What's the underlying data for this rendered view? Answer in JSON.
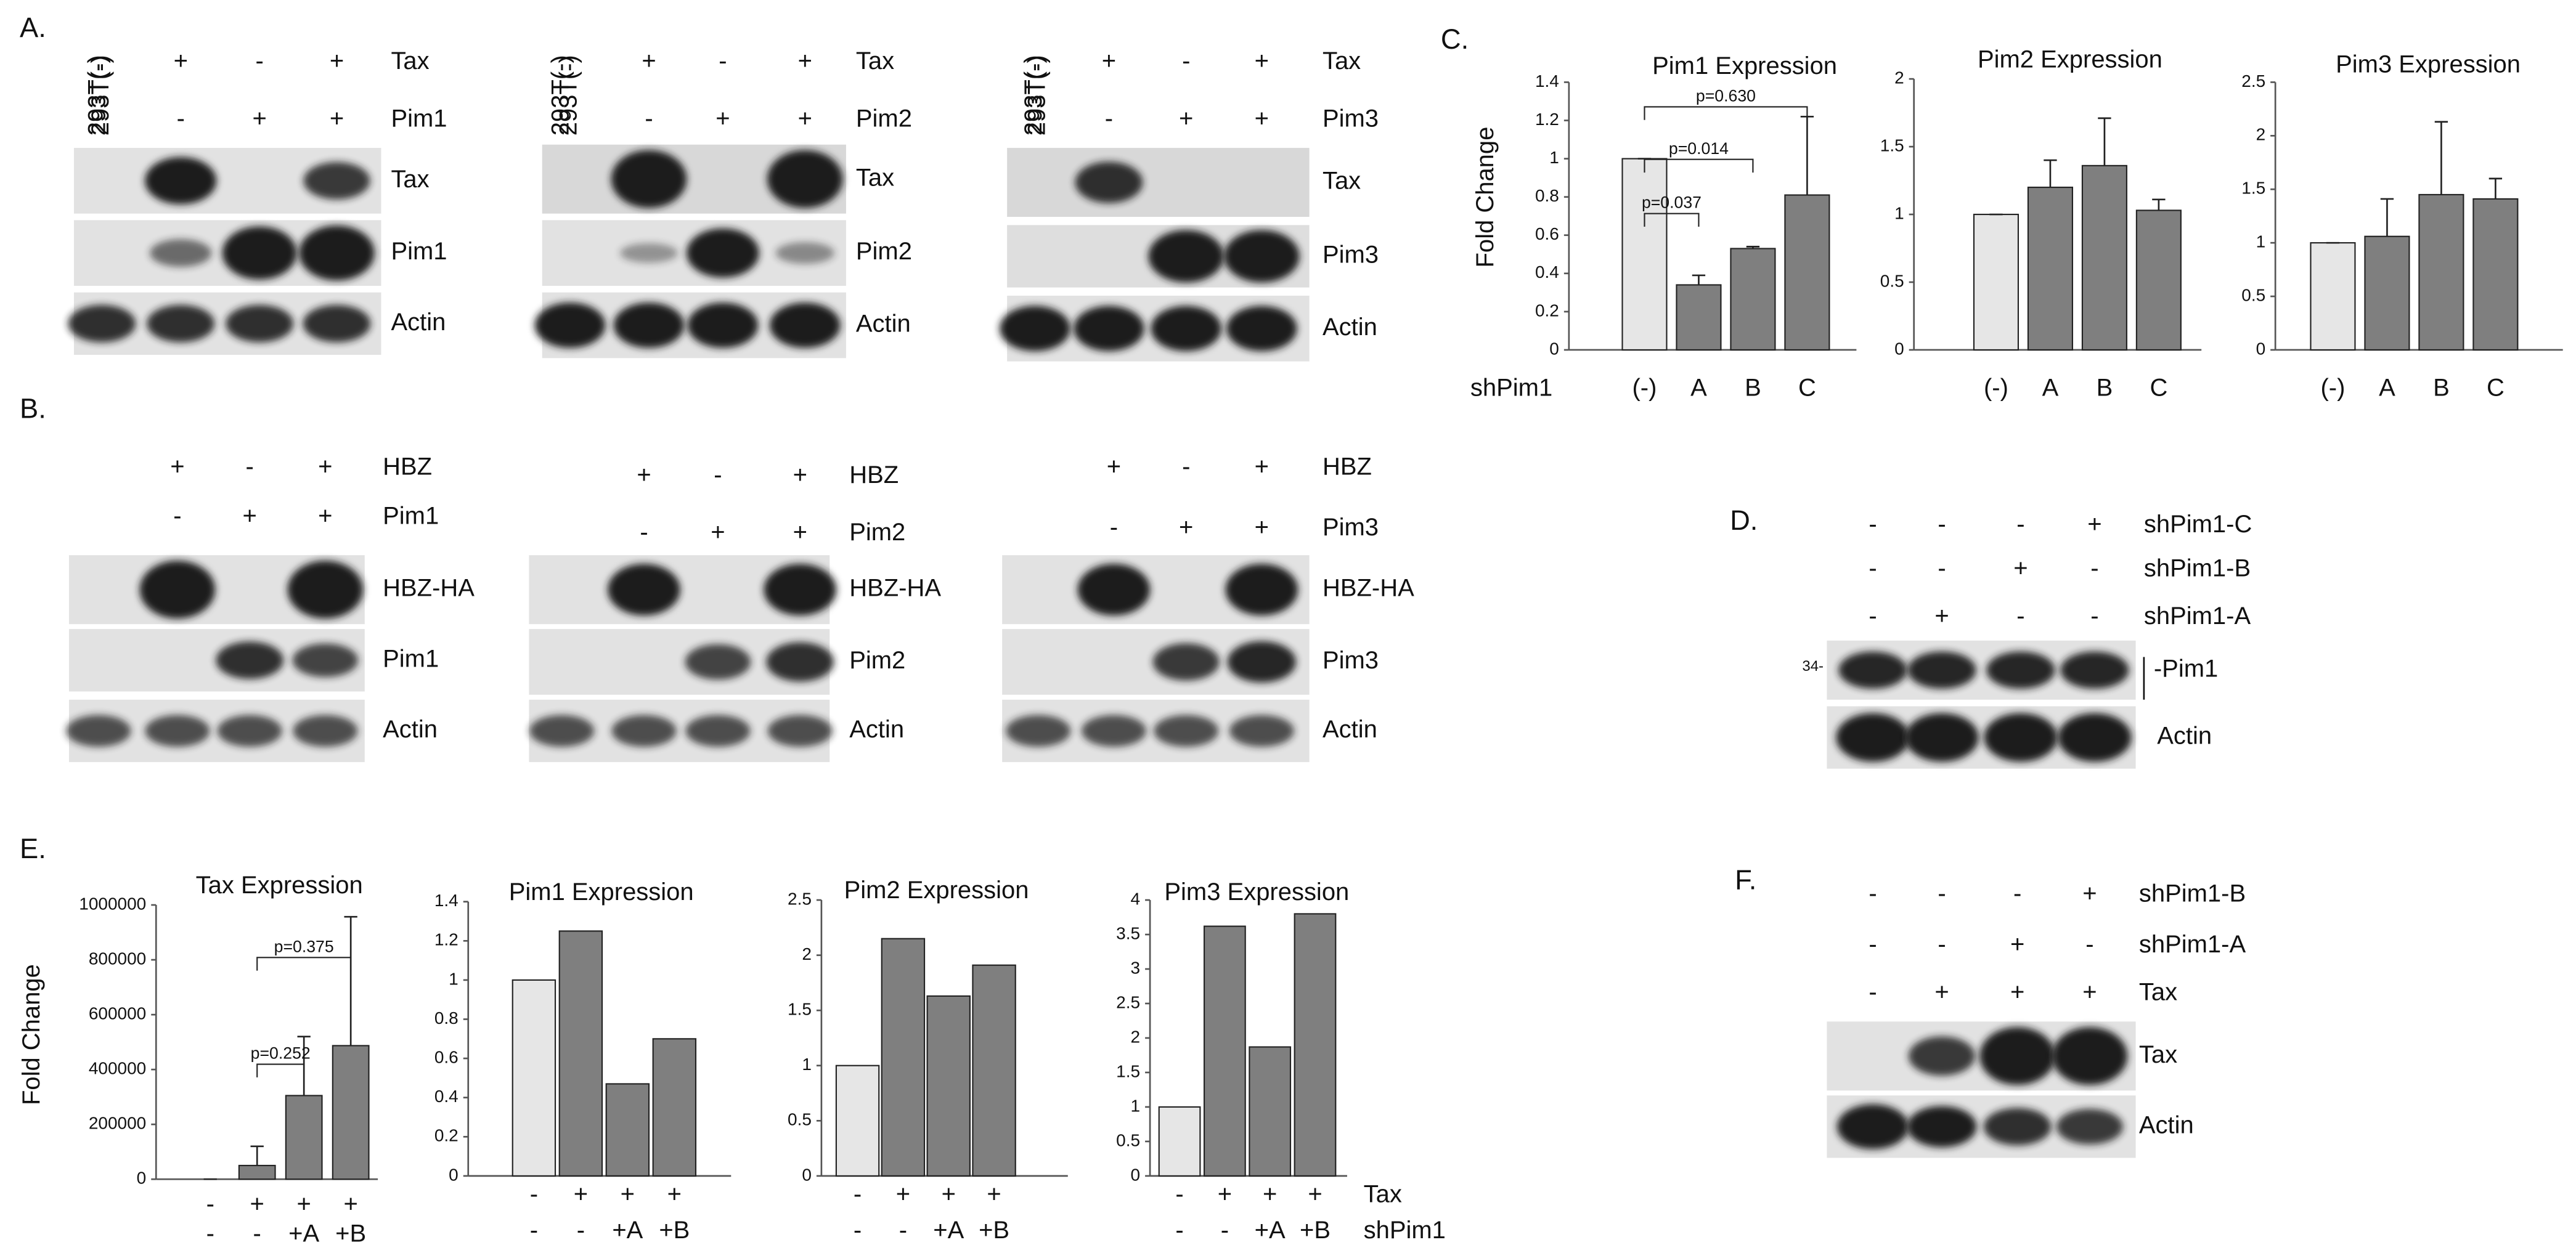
{
  "panels": {
    "A": {
      "label": "A.",
      "blots": [
        {
          "lane_header": "293T(-)",
          "rows": [
            {
              "label": "Tax",
              "signs": [
                "+",
                "-",
                "+"
              ]
            },
            {
              "label": "Pim1",
              "signs": [
                "-",
                "+",
                "+"
              ]
            }
          ],
          "bands": [
            "Tax",
            "Pim1",
            "Actin"
          ]
        },
        {
          "lane_header": "293T(-)",
          "rows": [
            {
              "label": "Tax",
              "signs": [
                "+",
                "-",
                "+"
              ]
            },
            {
              "label": "Pim2",
              "signs": [
                "-",
                "+",
                "+"
              ]
            }
          ],
          "bands": [
            "Tax",
            "Pim2",
            "Actin"
          ]
        },
        {
          "lane_header": "293T(-)",
          "rows": [
            {
              "label": "Tax",
              "signs": [
                "+",
                "-",
                "+"
              ]
            },
            {
              "label": "Pim3",
              "signs": [
                "-",
                "+",
                "+"
              ]
            }
          ],
          "bands": [
            "Tax",
            "Pim3",
            "Actin"
          ]
        }
      ]
    },
    "B": {
      "label": "B.",
      "blots": [
        {
          "lane_header": "293T(-)",
          "rows": [
            {
              "label": "HBZ",
              "signs": [
                "+",
                "-",
                "+"
              ]
            },
            {
              "label": "Pim1",
              "signs": [
                "-",
                "+",
                "+"
              ]
            }
          ],
          "bands": [
            "HBZ-HA",
            "Pim1",
            "Actin"
          ]
        },
        {
          "lane_header": "293T(-)",
          "rows": [
            {
              "label": "HBZ",
              "signs": [
                "+",
                "-",
                "+"
              ]
            },
            {
              "label": "Pim2",
              "signs": [
                "-",
                "+",
                "+"
              ]
            }
          ],
          "bands": [
            "HBZ-HA",
            "Pim2",
            "Actin"
          ]
        },
        {
          "lane_header": "293T(-)",
          "rows": [
            {
              "label": "HBZ",
              "signs": [
                "+",
                "-",
                "+"
              ]
            },
            {
              "label": "Pim3",
              "signs": [
                "-",
                "+",
                "+"
              ]
            }
          ],
          "bands": [
            "HBZ-HA",
            "Pim3",
            "Actin"
          ]
        }
      ]
    },
    "C": {
      "label": "C."
    },
    "D": {
      "label": "D.",
      "rows": [
        {
          "label": "shPim1-C",
          "signs": [
            "-",
            "-",
            "-",
            "+"
          ]
        },
        {
          "label": "shPim1-B",
          "signs": [
            "-",
            "-",
            "+",
            "-"
          ]
        },
        {
          "label": "shPim1-A",
          "signs": [
            "-",
            "+",
            "-",
            "-"
          ]
        }
      ],
      "marker": "34-",
      "bands": [
        "-Pim1",
        "Actin"
      ]
    },
    "E": {
      "label": "E."
    },
    "F": {
      "label": "F.",
      "rows": [
        {
          "label": "shPim1-B",
          "signs": [
            "-",
            "-",
            "-",
            "+"
          ]
        },
        {
          "label": "shPim1-A",
          "signs": [
            "-",
            "-",
            "+",
            "-"
          ]
        },
        {
          "label": "Tax",
          "signs": [
            "-",
            "+",
            "+",
            "+"
          ]
        }
      ],
      "bands": [
        "Tax",
        "Actin"
      ]
    }
  },
  "chart_data": [
    {
      "type": "bar",
      "title": "Pim1 Expression",
      "ylabel": "Fold Change",
      "xlabel": "shPim1",
      "categories": [
        "(-)",
        "A",
        "B",
        "C"
      ],
      "values": [
        1,
        0.34,
        0.53,
        0.81
      ],
      "errors": [
        0,
        0.05,
        0.01,
        0.41
      ],
      "colors": [
        "#e6e6e6",
        "#7f7f7f",
        "#7f7f7f",
        "#7f7f7f"
      ],
      "ylim": [
        0,
        1.4
      ],
      "yticks": [
        0,
        0.2,
        0.4,
        0.6,
        0.8,
        1,
        1.2,
        1.4
      ],
      "annotations": [
        "p=0.630",
        "p=0.014",
        "p=0.037"
      ]
    },
    {
      "type": "bar",
      "title": "Pim2 Expression",
      "categories": [
        "(-)",
        "A",
        "B",
        "C"
      ],
      "values": [
        1,
        1.2,
        1.36,
        1.03
      ],
      "errors": [
        0,
        0.2,
        0.35,
        0.08
      ],
      "colors": [
        "#e6e6e6",
        "#7f7f7f",
        "#7f7f7f",
        "#7f7f7f"
      ],
      "ylim": [
        0,
        2
      ],
      "yticks": [
        0,
        0.5,
        1,
        1.5,
        2
      ]
    },
    {
      "type": "bar",
      "title": "Pim3 Expression",
      "categories": [
        "(-)",
        "A",
        "B",
        "C"
      ],
      "values": [
        1,
        1.06,
        1.45,
        1.41
      ],
      "errors": [
        0,
        0.35,
        0.68,
        0.19
      ],
      "colors": [
        "#e6e6e6",
        "#7f7f7f",
        "#7f7f7f",
        "#7f7f7f"
      ],
      "ylim": [
        0,
        2.5
      ],
      "yticks": [
        0,
        0.5,
        1,
        1.5,
        2,
        2.5
      ]
    },
    {
      "type": "bar",
      "title": "Tax Expression",
      "ylabel": "Fold Change",
      "categories": [
        "-",
        "+",
        "+",
        "+"
      ],
      "categories2": [
        "-",
        "-",
        "+A",
        "+B"
      ],
      "values": [
        0,
        50000,
        305000,
        487000
      ],
      "errors": [
        0,
        70000,
        215000,
        470000
      ],
      "colors": [
        "#e6e6e6",
        "#7f7f7f",
        "#7f7f7f",
        "#7f7f7f"
      ],
      "ylim": [
        0,
        1000000
      ],
      "yticks": [
        0,
        200000,
        400000,
        600000,
        800000,
        1000000
      ],
      "annotations": [
        "p=0.375",
        "p=0.252"
      ]
    },
    {
      "type": "bar",
      "title": "Pim1 Expression",
      "categories": [
        "-",
        "+",
        "+",
        "+"
      ],
      "categories2": [
        "-",
        "-",
        "+A",
        "+B"
      ],
      "values": [
        1,
        1.25,
        0.47,
        0.7
      ],
      "colors": [
        "#e6e6e6",
        "#7f7f7f",
        "#7f7f7f",
        "#7f7f7f"
      ],
      "ylim": [
        0,
        1.4
      ],
      "yticks": [
        0,
        0.2,
        0.4,
        0.6,
        0.8,
        1,
        1.2,
        1.4
      ]
    },
    {
      "type": "bar",
      "title": "Pim2 Expression",
      "categories": [
        "-",
        "+",
        "+",
        "+"
      ],
      "categories2": [
        "-",
        "-",
        "+A",
        "+B"
      ],
      "values": [
        1,
        2.15,
        1.63,
        1.91
      ],
      "colors": [
        "#e6e6e6",
        "#7f7f7f",
        "#7f7f7f",
        "#7f7f7f"
      ],
      "ylim": [
        0,
        2.5
      ],
      "yticks": [
        0,
        0.5,
        1,
        1.5,
        2,
        2.5
      ]
    },
    {
      "type": "bar",
      "title": "Pim3 Expression",
      "categories": [
        "-",
        "+",
        "+",
        "+"
      ],
      "categories2": [
        "-",
        "-",
        "+A",
        "+B"
      ],
      "row_labels": [
        "Tax",
        "shPim1"
      ],
      "values": [
        1,
        3.62,
        1.87,
        3.8
      ],
      "colors": [
        "#e6e6e6",
        "#7f7f7f",
        "#7f7f7f",
        "#7f7f7f"
      ],
      "ylim": [
        0,
        4
      ],
      "yticks": [
        0,
        0.5,
        1,
        1.5,
        2,
        2.5,
        3,
        3.5,
        4
      ]
    }
  ]
}
